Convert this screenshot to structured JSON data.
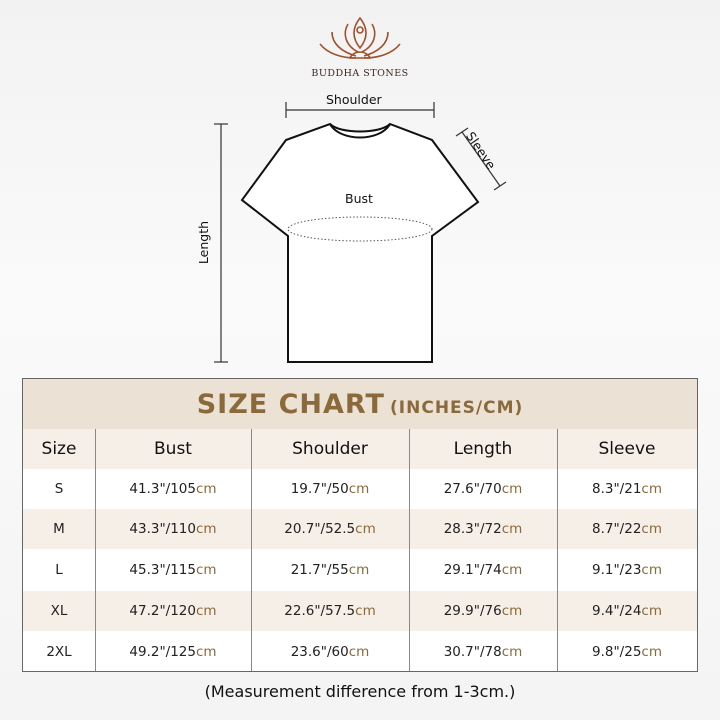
{
  "brand": {
    "name": "BUDDHA STONES",
    "accent": "#8a6a3a",
    "logo_color": "#a0522d"
  },
  "diagram": {
    "shoulder": "Shoulder",
    "sleeve": "Sleeve",
    "bust": "Bust",
    "length": "Length"
  },
  "chart": {
    "title": "SIZE CHART",
    "subtitle": "(INCHES/CM)",
    "headers": [
      "Size",
      "Bust",
      "Shoulder",
      "Length",
      "Sleeve"
    ],
    "unit": "cm",
    "rows": [
      {
        "size": "S",
        "values": [
          "41.3\"/105",
          "19.7\"/50",
          "27.6\"/70",
          "8.3\"/21"
        ]
      },
      {
        "size": "M",
        "values": [
          "43.3\"/110",
          "20.7\"/52.5",
          "28.3\"/72",
          "8.7\"/22"
        ]
      },
      {
        "size": "L",
        "values": [
          "45.3\"/115",
          "21.7\"/55",
          "29.1\"/74",
          "9.1\"/23"
        ]
      },
      {
        "size": "XL",
        "values": [
          "47.2\"/120",
          "22.6\"/57.5",
          "29.9\"/76",
          "9.4\"/24"
        ]
      },
      {
        "size": "2XL",
        "values": [
          "49.2\"/125",
          "23.6\"/60",
          "30.7\"/78",
          "9.8\"/25"
        ]
      }
    ]
  },
  "note": "(Measurement difference from 1-3cm.)"
}
